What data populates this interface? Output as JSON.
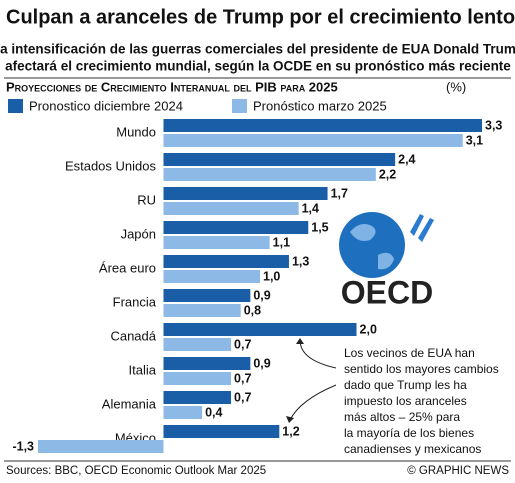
{
  "chart_data": {
    "type": "bar",
    "orientation": "horizontal",
    "title": "Culpan a aranceles de Trump por el crecimiento lento",
    "subtitle": [
      "La intensificación de las guerras comerciales del presidente de EUA Donald Trump",
      "afectará el crecimiento mundial, según la OCDE  en su pronóstico más reciente"
    ],
    "axis_title": "Proyecciones de Crecimiento Interanual del PIB para 2025",
    "unit": "(%)",
    "categories": [
      "Mundo",
      "Estados Unidos",
      "RU",
      "Japón",
      "Área euro",
      "Francia",
      "Canadá",
      "Italia",
      "Alemania",
      "México"
    ],
    "series": [
      {
        "name": "Pronostico diciembre 2024",
        "color": "#1b5ea8",
        "values": [
          3.3,
          2.4,
          1.7,
          1.5,
          1.3,
          0.9,
          2.0,
          0.9,
          0.7,
          1.2
        ],
        "value_labels": [
          "3,3",
          "2,4",
          "1,7",
          "1,5",
          "1,3",
          "0,9",
          "2,0",
          "0,9",
          "0,7",
          "1,2"
        ]
      },
      {
        "name": "Pronóstico marzo 2025",
        "color": "#8db9e6",
        "values": [
          3.1,
          2.2,
          1.4,
          1.1,
          1.0,
          0.8,
          0.7,
          0.7,
          0.4,
          -1.3
        ],
        "value_labels": [
          "3,1",
          "2,2",
          "1,4",
          "1,1",
          "1,0",
          "0,8",
          "0,7",
          "0,7",
          "0,4",
          "-1,3"
        ]
      }
    ],
    "xlim": [
      -1.3,
      3.3
    ],
    "annotation": [
      "Los vecinos de EUA han",
      "sentido los mayores cambios",
      "dado que Trump les ha",
      "impuesto los aranceles",
      "más altos – 25% para",
      "la mayoría de los bienes",
      "canadienses y mexicanos"
    ],
    "logo": "OECD",
    "source": "Sources: BBC, OECD Economic Outlook Mar 2025",
    "credit": "© GRAPHIC NEWS"
  }
}
